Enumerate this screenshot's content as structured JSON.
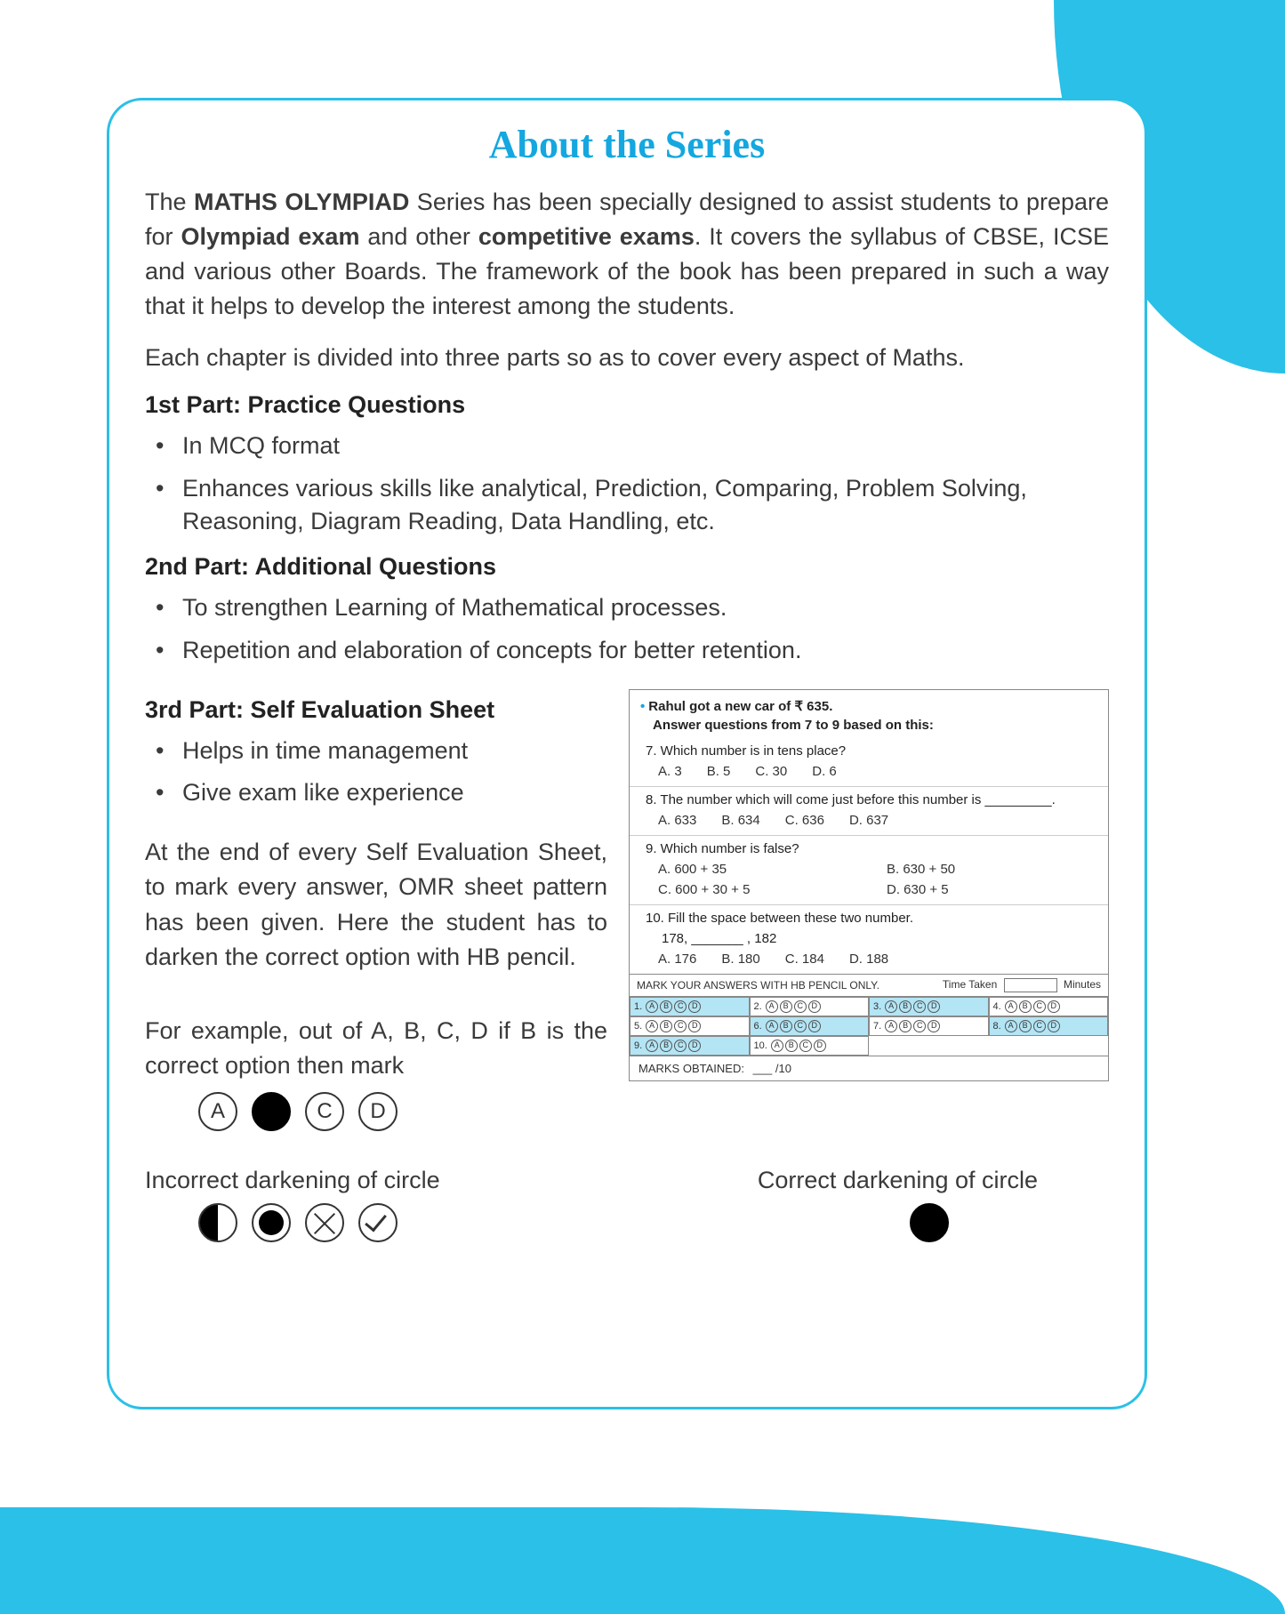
{
  "colors": {
    "accent": "#2ac0e8",
    "title": "#14a7e0",
    "text": "#3a3a3a",
    "border": "#888888",
    "shaded_cell": "#b3e5f5",
    "black": "#000000",
    "white": "#ffffff"
  },
  "title": "About the Series",
  "intro_html": "The <b>MATHS OLYMPIAD</b> Series has been specially designed to assist students to prepare for <b>Olympiad exam</b> and other <b>competitive exams</b>. It covers the syllabus of CBSE, ICSE and various other Boards. The framework of the book has been prepared in such a way that it helps to develop the interest among the students.",
  "divider_line": "Each chapter is divided into three parts so as to cover every aspect of Maths.",
  "part1": {
    "heading": "1st Part: Practice Questions",
    "bullets": [
      "In MCQ format",
      "Enhances various skills like analytical, Prediction, Comparing, Problem Solving, Reasoning, Diagram Reading, Data Handling, etc."
    ]
  },
  "part2": {
    "heading": "2nd Part: Additional Questions",
    "bullets": [
      "To strengthen Learning of Mathematical processes.",
      "Repetition and elaboration of concepts for better retention."
    ]
  },
  "part3": {
    "heading": "3rd Part: Self Evaluation Sheet",
    "bullets": [
      "Helps in time management",
      "Give exam like experience"
    ],
    "omr_para": "At the end of every Self Evaluation Sheet, to mark every answer, OMR sheet pattern has been given. Here the student has to darken the correct option with HB pencil.",
    "example_para": "For example, out of A, B, C, D if B is the correct option then mark"
  },
  "example_choices": [
    "A",
    "B",
    "C",
    "D"
  ],
  "example_filled_index": 1,
  "dark_labels": {
    "incorrect": "Incorrect darkening of circle",
    "correct": "Correct darkening of circle"
  },
  "sheet": {
    "intro1": "Rahul got a new car of ₹ 635.",
    "intro2": "Answer questions from 7 to 9 based on this:",
    "questions": [
      {
        "num": "7.",
        "text": "Which number is in tens place?",
        "opts": [
          "A. 3",
          "B. 5",
          "C. 30",
          "D. 6"
        ],
        "layout": "row"
      },
      {
        "num": "8.",
        "text": "The number which will come just before this number is _________.",
        "opts": [
          "A. 633",
          "B. 634",
          "C. 636",
          "D. 637"
        ],
        "layout": "row"
      },
      {
        "num": "9.",
        "text": "Which number is false?",
        "opts": [
          "A. 600 + 35",
          "B. 630 + 50",
          "C. 600 + 30 + 5",
          "D. 630 + 5"
        ],
        "layout": "grid"
      },
      {
        "num": "10.",
        "text": "Fill the space between these two number.",
        "subtext": "178, _______ , 182",
        "opts": [
          "A. 176",
          "B. 180",
          "C. 184",
          "D. 188"
        ],
        "layout": "row"
      }
    ],
    "omr_header": "MARK YOUR ANSWERS WITH HB PENCIL ONLY.",
    "time_label": "Time Taken",
    "time_unit": "Minutes",
    "omr_cells": [
      {
        "n": "1.",
        "shaded": true
      },
      {
        "n": "2.",
        "shaded": false
      },
      {
        "n": "3.",
        "shaded": true
      },
      {
        "n": "4.",
        "shaded": false
      },
      {
        "n": "5.",
        "shaded": false
      },
      {
        "n": "6.",
        "shaded": true
      },
      {
        "n": "7.",
        "shaded": false
      },
      {
        "n": "8.",
        "shaded": true
      },
      {
        "n": "9.",
        "shaded": true
      },
      {
        "n": "10.",
        "shaded": false
      }
    ],
    "bubbles": [
      "A",
      "B",
      "C",
      "D"
    ],
    "marks_label": "MARKS OBTAINED:",
    "marks_value": "___ /10"
  }
}
